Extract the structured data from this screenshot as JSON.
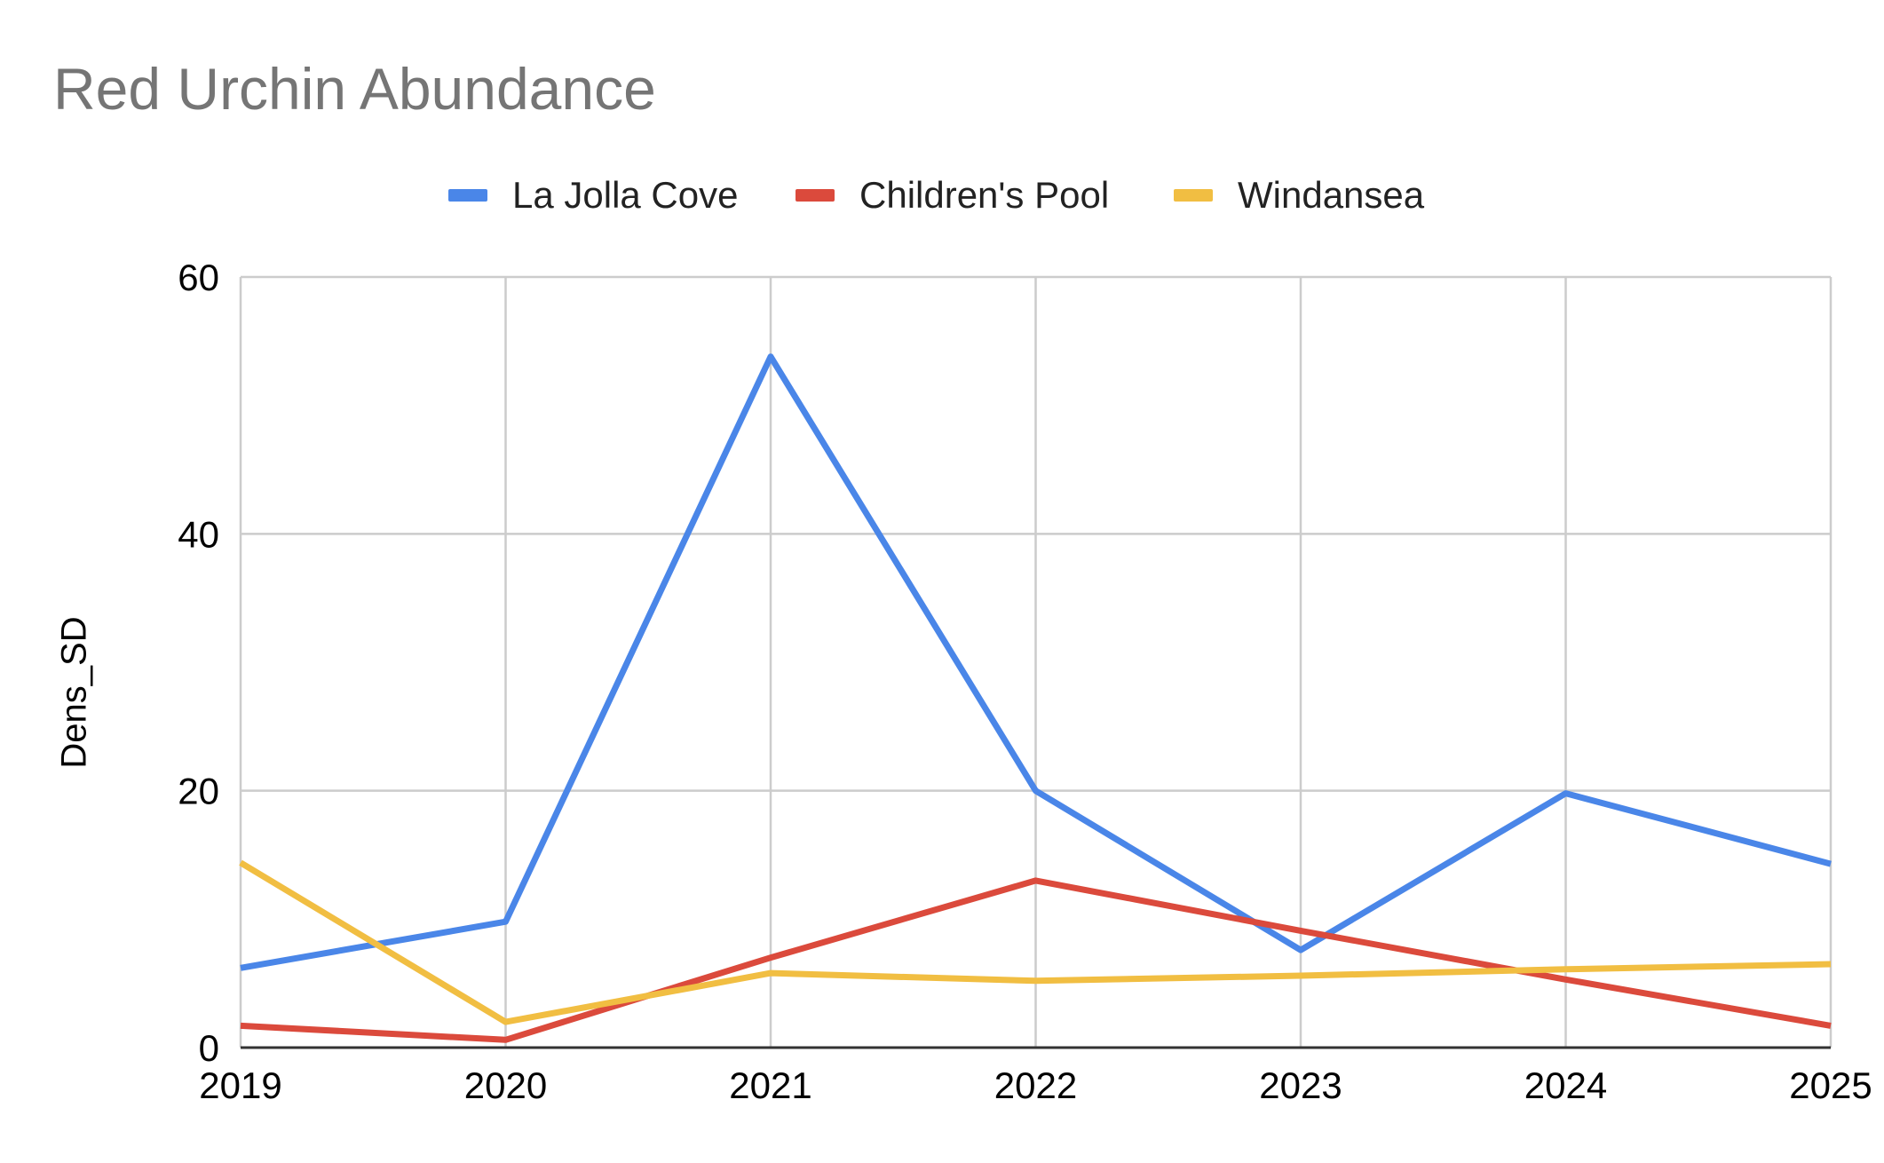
{
  "chart_data": {
    "type": "line",
    "title": "Red Urchin Abundance",
    "xlabel": "",
    "ylabel": "Dens_SD",
    "x": [
      2019,
      2020,
      2021,
      2022,
      2023,
      2024,
      2025
    ],
    "x_tick_labels": [
      "2019",
      "2020",
      "2021",
      "2022",
      "2023",
      "2024",
      "2025"
    ],
    "ylim": [
      0,
      60
    ],
    "y_ticks": [
      0,
      20,
      40,
      60
    ],
    "y_tick_labels": [
      "0",
      "20",
      "40",
      "60"
    ],
    "grid": true,
    "legend_position": "top",
    "series": [
      {
        "name": "La Jolla Cove",
        "color": "#4A86E8",
        "values": [
          6.2,
          9.8,
          53.8,
          20.0,
          7.6,
          19.8,
          14.3
        ]
      },
      {
        "name": "Children's Pool",
        "color": "#DB4A3C",
        "values": [
          1.7,
          0.6,
          7.0,
          13.0,
          9.1,
          5.3,
          1.7
        ]
      },
      {
        "name": "Windansea",
        "color": "#F1BE42",
        "values": [
          14.4,
          2.0,
          5.8,
          5.2,
          5.6,
          6.1,
          6.5
        ]
      }
    ]
  }
}
